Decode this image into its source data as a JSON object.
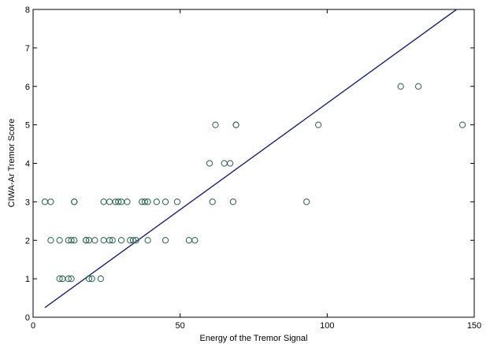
{
  "chart_data": {
    "type": "scatter",
    "title": "",
    "xlabel": "Energy of the Tremor Signal",
    "ylabel": "CIWA-Ar Tremor Score",
    "xlim": [
      0,
      150
    ],
    "ylim": [
      0,
      8
    ],
    "xticks": [
      0,
      50,
      100,
      150
    ],
    "yticks": [
      0,
      1,
      2,
      3,
      4,
      5,
      6,
      7,
      8
    ],
    "grid": false,
    "legend": "none",
    "marker": "open-circle",
    "marker_color": "#1f5f4a",
    "line_color": "#1a237e",
    "series": [
      {
        "points": [
          [
            4,
            3
          ],
          [
            6,
            3
          ],
          [
            6,
            2
          ],
          [
            9,
            1
          ],
          [
            9,
            2
          ],
          [
            10,
            1
          ],
          [
            12,
            2
          ],
          [
            12,
            1
          ],
          [
            13,
            2
          ],
          [
            13,
            1
          ],
          [
            14,
            2
          ],
          [
            14,
            3
          ],
          [
            14,
            3
          ],
          [
            18,
            2
          ],
          [
            18,
            2
          ],
          [
            19,
            2
          ],
          [
            19,
            1
          ],
          [
            20,
            1
          ],
          [
            21,
            2
          ],
          [
            23,
            1
          ],
          [
            24,
            3
          ],
          [
            24,
            2
          ],
          [
            26,
            2
          ],
          [
            26,
            3
          ],
          [
            27,
            2
          ],
          [
            28,
            3
          ],
          [
            29,
            3
          ],
          [
            30,
            3
          ],
          [
            30,
            2
          ],
          [
            32,
            3
          ],
          [
            33,
            2
          ],
          [
            34,
            2
          ],
          [
            35,
            2
          ],
          [
            37,
            3
          ],
          [
            38,
            3
          ],
          [
            39,
            3
          ],
          [
            39,
            2
          ],
          [
            42,
            3
          ],
          [
            45,
            3
          ],
          [
            45,
            2
          ],
          [
            49,
            3
          ],
          [
            53,
            2
          ],
          [
            55,
            2
          ],
          [
            60,
            4
          ],
          [
            61,
            3
          ],
          [
            62,
            5
          ],
          [
            65,
            4
          ],
          [
            67,
            4
          ],
          [
            68,
            3
          ],
          [
            69,
            5
          ],
          [
            69,
            5
          ],
          [
            93,
            3
          ],
          [
            97,
            5
          ],
          [
            125,
            6
          ],
          [
            131,
            6
          ],
          [
            146,
            5
          ]
        ]
      }
    ],
    "fit_line": {
      "x": [
        4,
        144
      ],
      "y": [
        0.25,
        8.0
      ]
    }
  }
}
